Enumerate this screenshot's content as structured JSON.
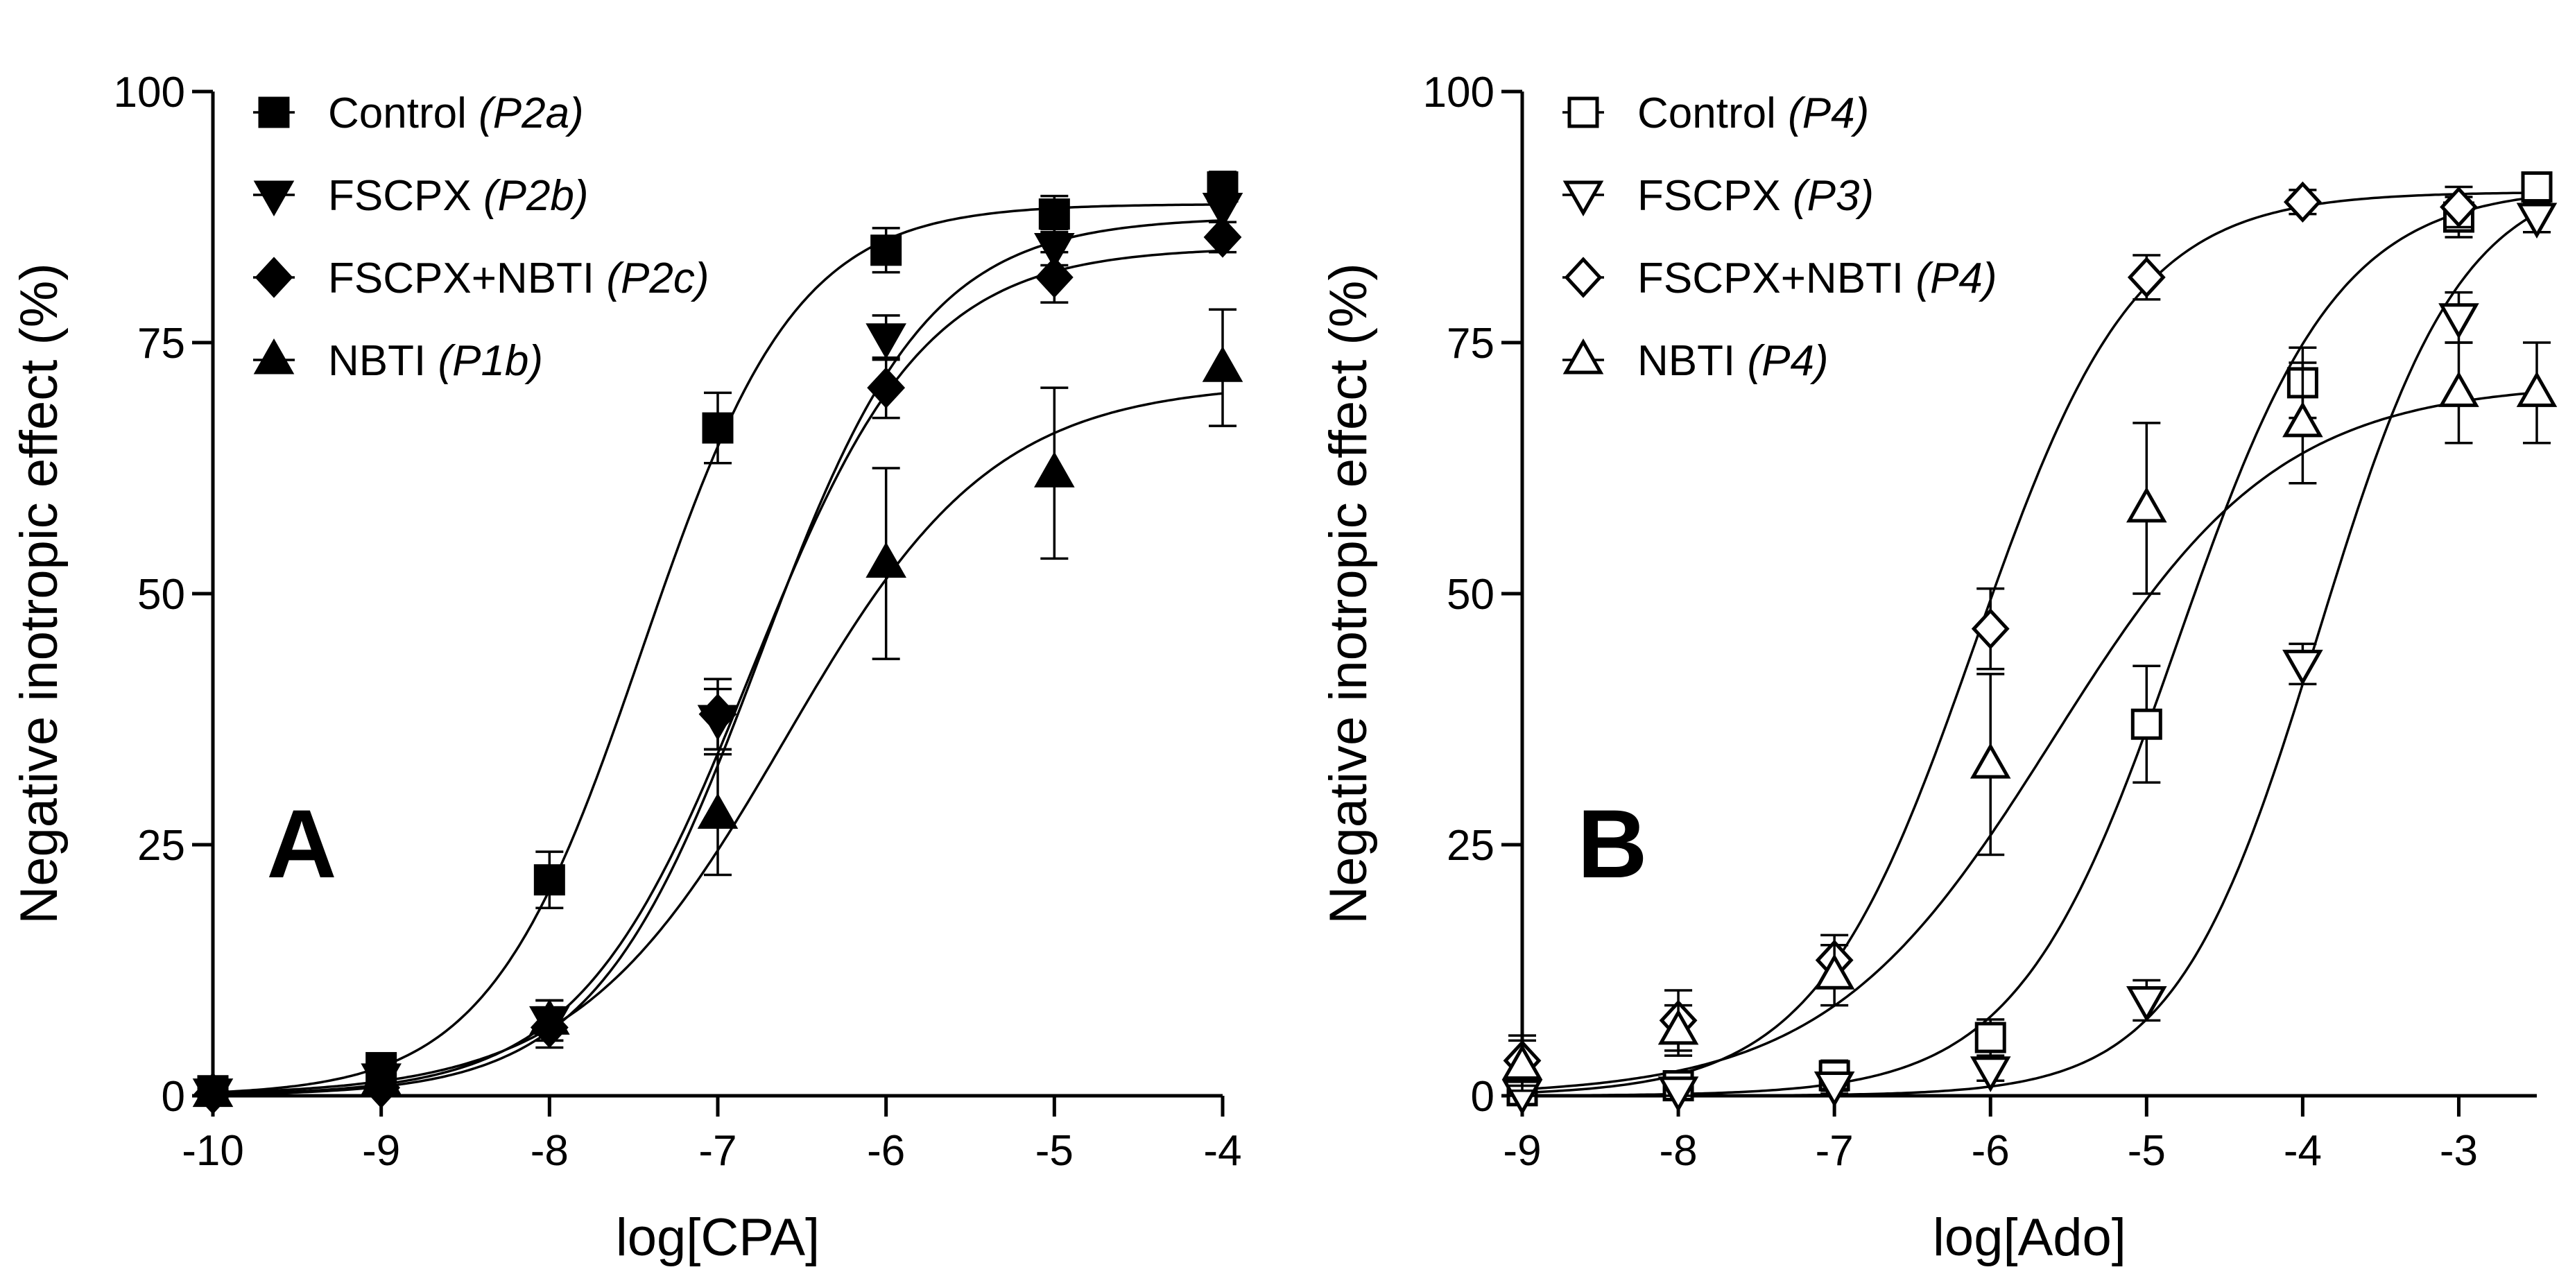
{
  "chart_data": [
    {
      "type": "line",
      "panel_label": "A",
      "xlabel": "log[CPA]",
      "ylabel": "Negative inotropic effect (%)",
      "xlim": [
        -10,
        -4
      ],
      "ylim": [
        0,
        100
      ],
      "xticks": [
        -10,
        -9,
        -8,
        -7,
        -6,
        -5,
        -4
      ],
      "yticks": [
        0,
        25,
        50,
        75,
        100
      ],
      "x_tick_labels": [
        "-10",
        "-9",
        "-8",
        "-7",
        "-6",
        "-5",
        "-4"
      ],
      "y_tick_labels": [
        "0",
        "25",
        "50",
        "75",
        "100"
      ],
      "legend_position": "top-left",
      "grid": false,
      "series": [
        {
          "name": "Control",
          "tag": "(P2a)",
          "marker": "square",
          "filled": true,
          "x": [
            -10,
            -9,
            -8,
            -7,
            -6,
            -5,
            -4
          ],
          "y": [
            0.5,
            2.8,
            21.5,
            66.5,
            84.2,
            87.8,
            90.5
          ],
          "err": [
            0.8,
            1.2,
            2.8,
            3.5,
            2.2,
            1.8,
            1.5
          ],
          "fit": {
            "bottom": 0,
            "top": 88.8,
            "logEC50": -7.45,
            "hill": 0.95
          }
        },
        {
          "name": "FSCPX",
          "tag": "(P2b)",
          "marker": "triangle-down",
          "filled": true,
          "x": [
            -10,
            -9,
            -8,
            -7,
            -6,
            -5,
            -4
          ],
          "y": [
            0.3,
            1.8,
            7.5,
            37.5,
            75.5,
            84.5,
            88.5
          ],
          "err": [
            0.5,
            1.0,
            2.0,
            3.0,
            2.2,
            1.8,
            1.5
          ],
          "fit": {
            "bottom": 0,
            "top": 87.5,
            "logEC50": -6.75,
            "hill": 0.88
          }
        },
        {
          "name": "FSCPX+NBTI",
          "tag": "(P2c)",
          "marker": "diamond",
          "filled": true,
          "x": [
            -10,
            -9,
            -8,
            -7,
            -6,
            -5,
            -4
          ],
          "y": [
            0.2,
            0.8,
            6.8,
            38.0,
            70.5,
            81.5,
            85.5
          ],
          "err": [
            0.5,
            0.8,
            2.0,
            3.5,
            3.0,
            2.5,
            1.5
          ],
          "fit": {
            "bottom": 0,
            "top": 84.5,
            "logEC50": -6.8,
            "hill": 0.85
          }
        },
        {
          "name": "NBTI",
          "tag": "(P1b)",
          "marker": "triangle-up",
          "filled": true,
          "x": [
            -10,
            -9,
            -8,
            -7,
            -6,
            -5,
            -4
          ],
          "y": [
            0.3,
            1.5,
            7.5,
            28.0,
            53.0,
            62.0,
            72.5
          ],
          "err": [
            0.5,
            1.0,
            2.0,
            6.0,
            9.5,
            8.5,
            5.8
          ],
          "fit": {
            "bottom": 0,
            "top": 71.0,
            "logEC50": -6.6,
            "hill": 0.7
          }
        }
      ]
    },
    {
      "type": "line",
      "panel_label": "B",
      "xlabel": "log[Ado]",
      "ylabel": "Negative inotropic effect (%)",
      "xlim": [
        -9,
        -2.5
      ],
      "ylim": [
        0,
        100
      ],
      "xticks": [
        -9,
        -8,
        -7,
        -6,
        -5,
        -4,
        -3
      ],
      "yticks": [
        0,
        25,
        50,
        75,
        100
      ],
      "x_tick_labels": [
        "-9",
        "-8",
        "-7",
        "-6",
        "-5",
        "-4",
        "-3"
      ],
      "y_tick_labels": [
        "0",
        "25",
        "50",
        "75",
        "100"
      ],
      "legend_position": "top-left",
      "grid": false,
      "series": [
        {
          "name": "Control",
          "tag": "(P4)",
          "marker": "square",
          "filled": false,
          "x": [
            -9,
            -8,
            -7,
            -6,
            -5,
            -4,
            -3,
            -2.5
          ],
          "y": [
            0.5,
            1.0,
            2.0,
            5.8,
            37.0,
            71.0,
            87.5,
            90.5
          ],
          "err": [
            0.8,
            1.0,
            1.5,
            1.8,
            5.8,
            3.5,
            2.0,
            1.2
          ],
          "fit": {
            "bottom": 0,
            "top": 90.5,
            "logEC50": -4.8,
            "hill": 0.85
          }
        },
        {
          "name": "FSCPX",
          "tag": "(P3)",
          "marker": "triangle-down",
          "filled": false,
          "x": [
            -9,
            -8,
            -7,
            -6,
            -5,
            -4,
            -3,
            -2.5
          ],
          "y": [
            0.2,
            0.5,
            1.0,
            2.5,
            9.5,
            43.0,
            77.5,
            87.5
          ],
          "err": [
            0.5,
            0.5,
            0.8,
            1.0,
            2.0,
            2.0,
            2.5,
            1.5
          ],
          "fit": {
            "bottom": 0,
            "top": 92.0,
            "logEC50": -3.9,
            "hill": 0.95
          }
        },
        {
          "name": "FSCPX+NBTI",
          "tag": "(P4)",
          "marker": "diamond",
          "filled": false,
          "x": [
            -9,
            -8,
            -7,
            -6,
            -5,
            -4,
            -3
          ],
          "y": [
            3.5,
            7.5,
            13.5,
            46.5,
            81.5,
            89.0,
            88.5
          ],
          "err": [
            2.5,
            3.0,
            2.5,
            4.0,
            2.2,
            1.2,
            2.0
          ],
          "fit": {
            "bottom": 0,
            "top": 90.0,
            "logEC50": -6.1,
            "hill": 0.85
          }
        },
        {
          "name": "NBTI",
          "tag": "(P4)",
          "marker": "triangle-up",
          "filled": false,
          "x": [
            -9,
            -8,
            -7,
            -6,
            -5,
            -4,
            -3,
            -2.5
          ],
          "y": [
            3.0,
            6.5,
            12.0,
            33.0,
            58.5,
            67.0,
            70.0,
            70.0
          ],
          "err": [
            2.5,
            2.5,
            3.0,
            9.0,
            8.5,
            6.0,
            5.0,
            5.0
          ],
          "fit": {
            "bottom": 0,
            "top": 71.0,
            "logEC50": -5.6,
            "hill": 0.6
          }
        }
      ]
    }
  ]
}
